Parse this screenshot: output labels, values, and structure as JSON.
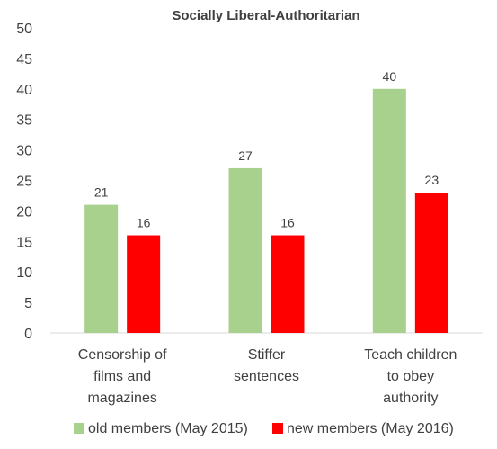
{
  "chart_data": {
    "type": "bar",
    "title": "Socially Liberal-Authoritarian",
    "xlabel": "",
    "ylabel": "",
    "ylim": [
      0,
      50
    ],
    "ytick_step": 5,
    "categories": [
      [
        "Censorship of",
        "films and",
        "magazines"
      ],
      [
        "Stiffer",
        "sentences"
      ],
      [
        "Teach children",
        "to obey",
        "authority"
      ]
    ],
    "series": [
      {
        "name": "old members (May 2015)",
        "color": "#a9d18e",
        "values": [
          21,
          27,
          40
        ]
      },
      {
        "name": "new members (May 2016)",
        "color": "#ff0000",
        "values": [
          16,
          16,
          23
        ]
      }
    ],
    "grid": false,
    "legend_position": "bottom"
  }
}
